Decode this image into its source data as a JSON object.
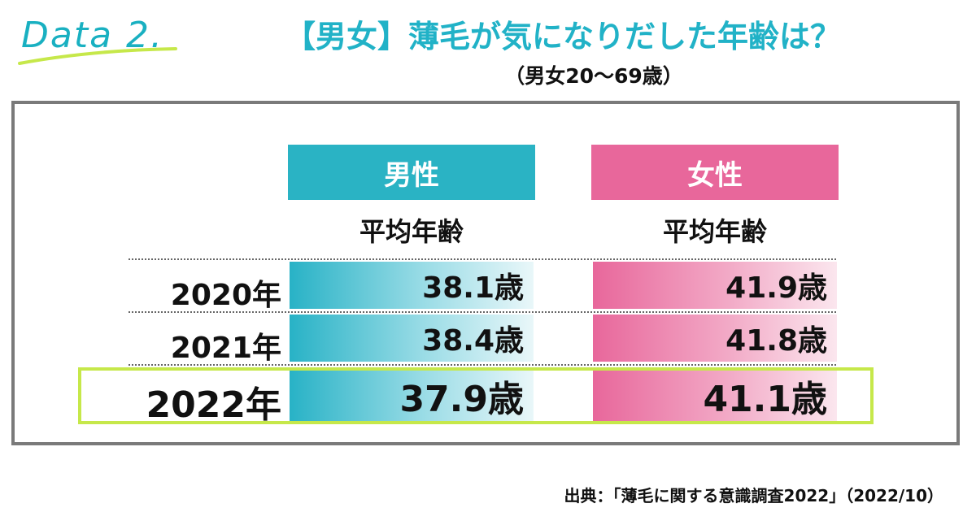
{
  "header": {
    "brand": "Data 2.",
    "title": "【男女】薄毛が気になりだした年齢は？",
    "subtitle": "（男女20〜69歳）"
  },
  "chart_data": {
    "type": "table",
    "columns": [
      {
        "name": "男性",
        "subheading": "平均年齢",
        "color": "#2ab3c4"
      },
      {
        "name": "女性",
        "subheading": "平均年齢",
        "color": "#e8679b"
      }
    ],
    "rows": [
      {
        "year": "2020年",
        "values": [
          38.1,
          41.9
        ],
        "labels": [
          "38.1歳",
          "41.9歳"
        ]
      },
      {
        "year": "2021年",
        "values": [
          38.4,
          41.8
        ],
        "labels": [
          "38.4歳",
          "41.8歳"
        ]
      },
      {
        "year": "2022年",
        "values": [
          37.9,
          41.1
        ],
        "labels": [
          "37.9歳",
          "41.1歳"
        ]
      }
    ],
    "highlighted_row": "2022年",
    "highlight_color": "#c6e84a"
  },
  "footer": {
    "source": "出典：「薄毛に関する意識調査2022」（2022/10）"
  }
}
